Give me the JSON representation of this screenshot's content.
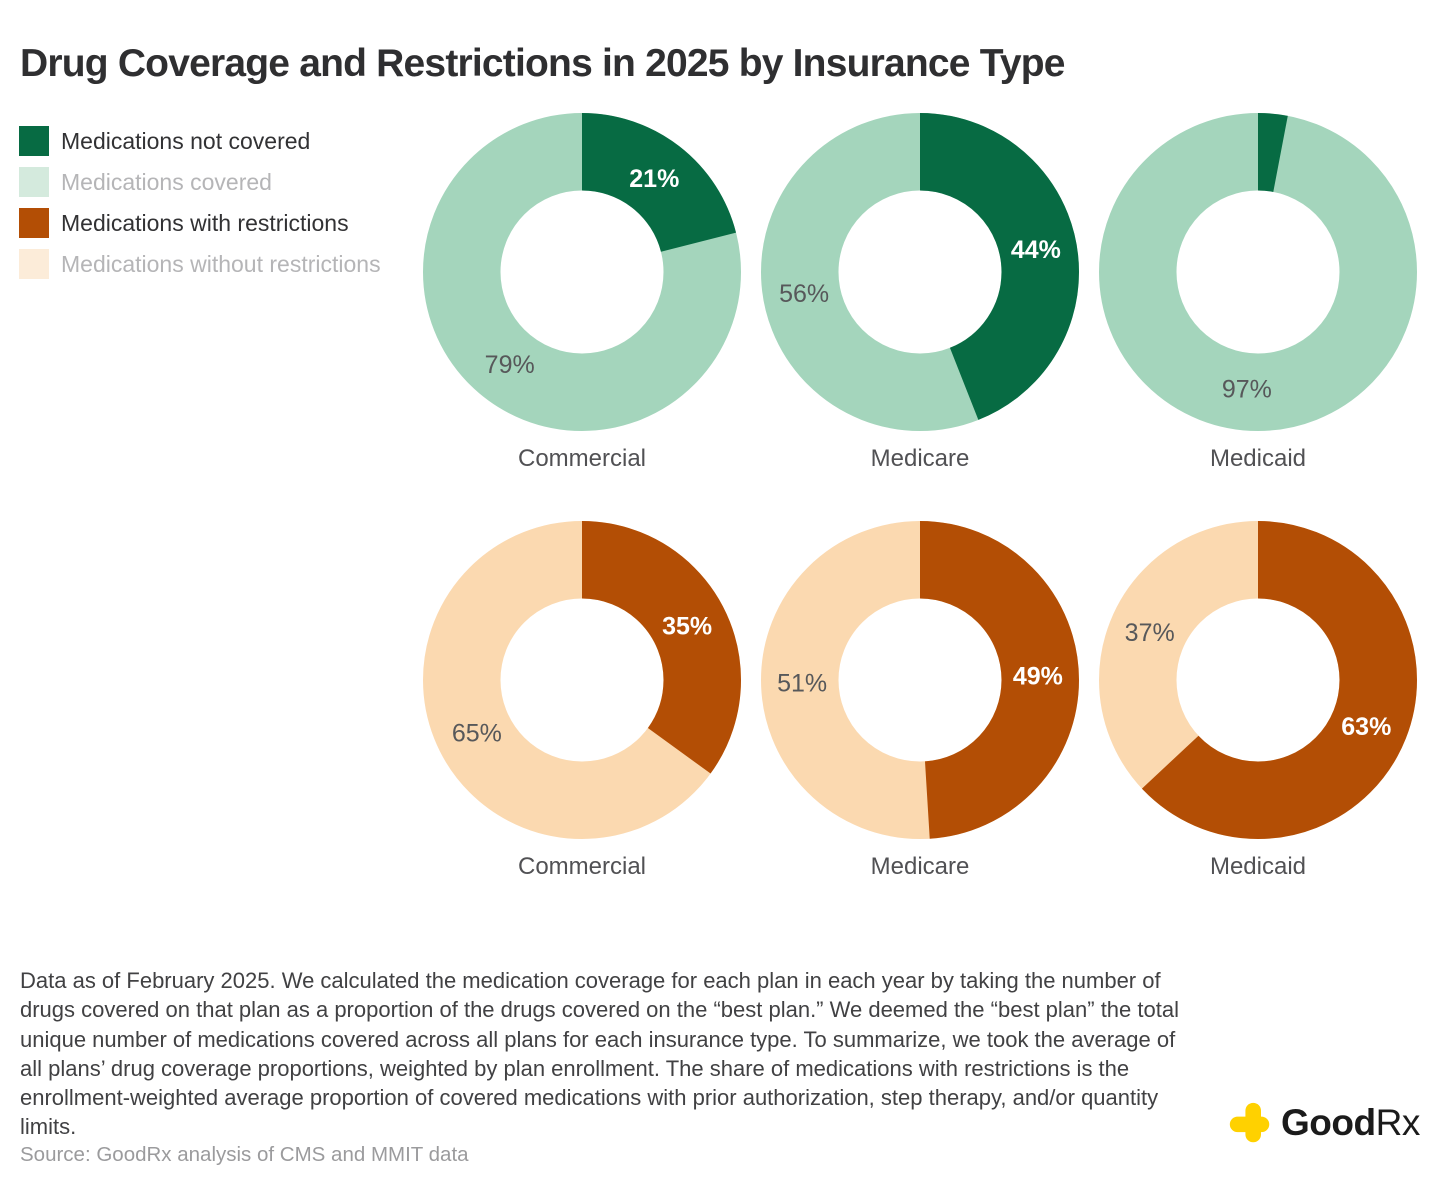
{
  "title": "Drug Coverage and Restrictions in 2025 by Insurance Type",
  "colors": {
    "dark_green": "#076b43",
    "light_green": "#a4d5bc",
    "dark_orange": "#b34e05",
    "light_peach": "#fbd9b0",
    "legend_muted_green": "#d4eadd",
    "legend_muted_peach": "#fcecd9",
    "white_label": "#ffffff",
    "gray_label": "#57585a",
    "goodrx_yellow": "#ffd100"
  },
  "legend": {
    "items": [
      {
        "label": "Medications not covered",
        "swatch": "#076b43",
        "muted": false
      },
      {
        "label": "Medications covered",
        "swatch": "#d4eadd",
        "muted": true
      },
      {
        "label": "Medications with restrictions",
        "swatch": "#b34e05",
        "muted": false
      },
      {
        "label": "Medications without restrictions",
        "swatch": "#fcecd9",
        "muted": true
      }
    ]
  },
  "chart_data": {
    "type": "pie",
    "subtype": "donut-grid",
    "legend_position": "top-left",
    "start_angle_deg": 0,
    "direction": "clockwise",
    "rows": [
      {
        "name": "coverage",
        "slice_names": [
          "Medications not covered",
          "Medications covered"
        ],
        "colors": [
          "#076b43",
          "#a4d5bc"
        ],
        "charts": [
          {
            "category": "Commercial",
            "values": [
              21,
              79
            ],
            "labels": [
              "21%",
              "79%"
            ]
          },
          {
            "category": "Medicare",
            "values": [
              44,
              56
            ],
            "labels": [
              "44%",
              "56%"
            ]
          },
          {
            "category": "Medicaid",
            "values": [
              3,
              97
            ],
            "labels": [
              "",
              "97%"
            ]
          }
        ]
      },
      {
        "name": "restrictions",
        "slice_names": [
          "Medications with restrictions",
          "Medications without restrictions"
        ],
        "colors": [
          "#b34e05",
          "#fbd9b0"
        ],
        "charts": [
          {
            "category": "Commercial",
            "values": [
              35,
              65
            ],
            "labels": [
              "35%",
              "65%"
            ]
          },
          {
            "category": "Medicare",
            "values": [
              49,
              51
            ],
            "labels": [
              "49%",
              "51%"
            ]
          },
          {
            "category": "Medicaid",
            "values": [
              63,
              37
            ],
            "labels": [
              "63%",
              "37%"
            ]
          }
        ]
      }
    ]
  },
  "footnote": "Data as of February 2025. We calculated the medication coverage for each plan in each year by taking the number of drugs covered on that plan as a proportion of the drugs covered on the “best plan.” We deemed the “best plan” the total unique number of medications covered across all plans for each insurance type. To summarize, we took the average of all plans’ drug coverage proportions, weighted by plan enrollment. The share of medications with restrictions is the enrollment-weighted average proportion of covered medications with prior authorization, step therapy, and/or quantity limits.",
  "source": "Source: GoodRx analysis of CMS and MMIT data",
  "logo": {
    "text_bold": "Good",
    "text_light": "Rx"
  }
}
